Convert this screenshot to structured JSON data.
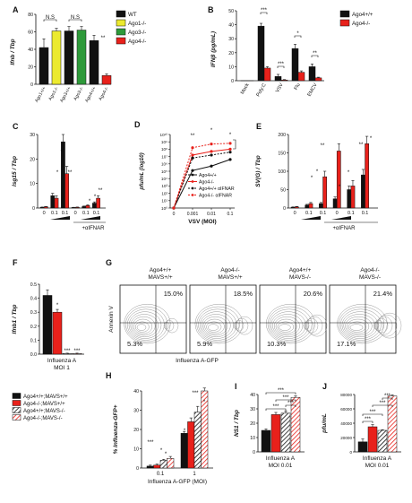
{
  "figure": {
    "panel_letters": [
      "A",
      "B",
      "C",
      "D",
      "E",
      "F",
      "G",
      "H",
      "I",
      "J"
    ]
  },
  "colors": {
    "black": "#111111",
    "red": "#e8211b",
    "yellow": "#ecea2f",
    "green": "#2e9a3a",
    "gray_contour": "#8a8a8a"
  },
  "chart_data": [
    {
      "panel": "A",
      "type": "bar",
      "ylabel": "Ifnb / Tbp",
      "ylim": [
        0,
        80
      ],
      "yticks": [
        "0",
        "20",
        "40",
        "60",
        "80"
      ],
      "categories": [
        "Ago1+/+",
        "Ago1-/-",
        "Ago3+/+",
        "Ago3-/-",
        "Ago4+/+",
        "Ago4-/-"
      ],
      "values": [
        42,
        61,
        61,
        62,
        50,
        10
      ],
      "errors": [
        10,
        3,
        5,
        4,
        6,
        2
      ],
      "bar_colors": [
        "#111111",
        "#ecea2f",
        "#111111",
        "#2e9a3a",
        "#111111",
        "#e8211b"
      ],
      "annotations": [
        "N.S",
        "N.S",
        "**"
      ],
      "legend": [
        "WT",
        "Ago1-/-",
        "Ago3-/-",
        "Ago4-/-"
      ],
      "legend_colors": [
        "#111111",
        "#ecea2f",
        "#2e9a3a",
        "#e8211b"
      ]
    },
    {
      "panel": "B",
      "type": "bar",
      "ylabel": "IFNβ (pg/mL)",
      "ylim": [
        0,
        50
      ],
      "yticks": [
        "0",
        "10",
        "20",
        "30",
        "40",
        "50"
      ],
      "categories": [
        "Mock",
        "Poly:C",
        "VSV",
        "Flu",
        "EMCV"
      ],
      "series": [
        {
          "name": "Ago4+/+",
          "values": [
            0,
            39,
            3,
            23,
            10
          ],
          "errors": [
            0,
            2,
            1.5,
            3,
            2
          ]
        },
        {
          "name": "Ago4-/-",
          "values": [
            0,
            9,
            0.5,
            6,
            2
          ],
          "errors": [
            0,
            1,
            0.3,
            1,
            0.5
          ]
        }
      ],
      "annotations": [
        "***",
        "***",
        "*",
        "**"
      ]
    },
    {
      "panel": "C",
      "type": "bar",
      "ylabel": "Isg15 / Tbp",
      "ylim": [
        0,
        30
      ],
      "yticks": [
        "0",
        "10",
        "20",
        "30"
      ],
      "x_tick_labels": [
        "0",
        "0.1",
        "0.1",
        "0",
        "0.1",
        "0.1"
      ],
      "treatment_label": "+αIFNAR",
      "series": [
        {
          "name": "Ago4+/+",
          "values": [
            0.3,
            5,
            27,
            0.2,
            0.6,
            2
          ],
          "errors": [
            0.1,
            1,
            3,
            0.1,
            0.2,
            0.5
          ]
        },
        {
          "name": "Ago4-/-",
          "values": [
            0.5,
            4,
            14,
            0.3,
            1,
            4
          ],
          "errors": [
            0.1,
            1,
            3,
            0.1,
            0.3,
            1
          ]
        }
      ],
      "annotations": [
        "*",
        "**",
        "**",
        "*",
        "*",
        "**"
      ]
    },
    {
      "panel": "D",
      "type": "line",
      "ylabel": "pfu/mL (log10)",
      "xlabel": "VSV (MOI)",
      "y_log_range": [
        0,
        10
      ],
      "yticks": [
        "10⁰",
        "10¹",
        "10²",
        "10³",
        "10⁴",
        "10⁵",
        "10⁶",
        "10⁷",
        "10⁸",
        "10⁹",
        "10¹⁰"
      ],
      "x": [
        "0",
        "0.001",
        "0.01",
        "0.1"
      ],
      "series": [
        {
          "name": "Ago4+/+",
          "values": [
            0,
            5.1,
            5.7,
            6.6
          ],
          "style": "black-solid"
        },
        {
          "name": "Ago4-/-",
          "values": [
            0,
            7.2,
            7.7,
            8.0
          ],
          "style": "red-solid"
        },
        {
          "name": "Ago4+/+ αIFNAR",
          "values": [
            0,
            6.8,
            7.2,
            7.6
          ],
          "style": "black-dashed"
        },
        {
          "name": "Ago4-/- αIFNAR",
          "values": [
            0,
            8.2,
            8.7,
            8.8
          ],
          "style": "red-dashed"
        }
      ],
      "annotations": [
        "**",
        "*",
        "*"
      ]
    },
    {
      "panel": "E",
      "type": "bar",
      "ylabel": "SV(G) / Tbp",
      "ylim": [
        0,
        200
      ],
      "yticks": [
        "0",
        "50",
        "100",
        "150",
        "200"
      ],
      "x_tick_labels": [
        "0",
        "0.1",
        "0.1",
        "0",
        "0.1",
        "0.1"
      ],
      "treatment_label": "+αIFNAR",
      "series": [
        {
          "name": "Ago4+/+",
          "values": [
            2,
            8,
            12,
            25,
            50,
            90
          ],
          "errors": [
            1,
            2,
            3,
            5,
            10,
            15
          ]
        },
        {
          "name": "Ago4-/-",
          "values": [
            3,
            12,
            85,
            155,
            60,
            175
          ],
          "errors": [
            1,
            3,
            15,
            20,
            15,
            20
          ]
        }
      ],
      "annotations": [
        "*",
        "*",
        "**",
        "*",
        "*",
        "**",
        "*"
      ]
    },
    {
      "panel": "F",
      "type": "bar",
      "ylabel": "Ifnb1 / Tbp",
      "ylim": [
        0,
        0.5
      ],
      "yticks": [
        "0.0",
        "0.1",
        "0.2",
        "0.3",
        "0.4",
        "0.5"
      ],
      "xlabel": "Influenza A",
      "xlabel2": "MOI 1",
      "categories": [
        "Ago4+/+;MAVS+/+",
        "Ago4-/-;MAVS+/+",
        "Ago4+/+;MAVS-/-",
        "Ago4-/-;MAVS-/-"
      ],
      "values": [
        0.42,
        0.3,
        0.005,
        0.005
      ],
      "errors": [
        0.04,
        0.02,
        0.002,
        0.002
      ],
      "annotations": [
        "*",
        "***",
        "***"
      ]
    },
    {
      "panel": "G",
      "type": "contour",
      "xlabel": "Influenza A-GFP",
      "ylabel": "Annexin V",
      "plots": [
        {
          "title1": "Ago4+/+",
          "title2": "MAVS+/+",
          "upper": "15.0%",
          "lower": "5.3%"
        },
        {
          "title1": "Ago4-/-",
          "title2": "MAVS+/+",
          "upper": "18.5%",
          "lower": "5.9%"
        },
        {
          "title1": "Ago4+/+",
          "title2": "MAVS-/-",
          "upper": "20.6%",
          "lower": "10.3%"
        },
        {
          "title1": "Ago4-/-",
          "title2": "MAVS-/-",
          "upper": "21.4%",
          "lower": "17.1%"
        }
      ]
    },
    {
      "panel": "H",
      "type": "bar",
      "ylabel": "% Influenza-GFP+",
      "ylim": [
        0,
        40
      ],
      "yticks": [
        "0",
        "10",
        "20",
        "30",
        "40"
      ],
      "xlabel": "Influenza A-GFP (MOI)",
      "categories": [
        "0.1",
        "1"
      ],
      "series": [
        {
          "name": "Ago4+/+;MAVS+/+",
          "values": [
            1,
            18
          ],
          "errors": [
            0.5,
            1
          ]
        },
        {
          "name": "Ago4-/-;MAVS+/+",
          "values": [
            1.5,
            24
          ],
          "errors": [
            0.5,
            2
          ]
        },
        {
          "name": "Ago4+/+;MAVS-/-",
          "values": [
            4,
            29
          ],
          "errors": [
            0.5,
            3
          ]
        },
        {
          "name": "Ago4-/-;MAVS-/-",
          "values": [
            5,
            40
          ],
          "errors": [
            1,
            1.5
          ]
        }
      ],
      "annotations": [
        "***",
        "*",
        "*",
        "*",
        "***",
        "*"
      ]
    },
    {
      "panel": "I",
      "type": "bar",
      "ylabel": "NS1 / Tbp",
      "ylim": [
        0,
        40
      ],
      "yticks": [
        "0",
        "10",
        "20",
        "30",
        "40"
      ],
      "xlabel": "Influenza A",
      "xlabel2": "MOI 0.01",
      "categories": [
        "Ago4+/+;MAVS+/+",
        "Ago4-/-;MAVS+/+",
        "Ago4+/+;MAVS-/-",
        "Ago4-/-;MAVS-/-"
      ],
      "values": [
        15,
        26,
        27,
        38
      ],
      "errors": [
        1,
        1.5,
        1.5,
        1
      ],
      "annotations": [
        "***",
        "***",
        "***",
        "***"
      ]
    },
    {
      "panel": "J",
      "type": "bar",
      "ylabel": "pfu/mL",
      "ylim": [
        0,
        80000
      ],
      "yticks": [
        "0",
        "20000",
        "40000",
        "60000",
        "80000"
      ],
      "xlabel": "Influenza A",
      "xlabel2": "MOI 0.01",
      "categories": [
        "Ago4+/+;MAVS+/+",
        "Ago4-/-;MAVS+/+",
        "Ago4+/+;MAVS-/-",
        "Ago4-/-;MAVS-/-"
      ],
      "values": [
        14000,
        35000,
        30000,
        78000
      ],
      "errors": [
        4000,
        3000,
        1000,
        1500
      ],
      "annotations": [
        "***",
        "***",
        "***",
        "***"
      ]
    }
  ],
  "shared_legend": {
    "entries": [
      "Ago4+/+;MAVS+/+",
      "Ago4-/-;MAVS+/+",
      "Ago4+/+;MAVS-/-",
      "Ago4-/-;MAVS-/-"
    ],
    "styles": [
      "black",
      "red",
      "black-hatched",
      "red-hatched"
    ]
  }
}
